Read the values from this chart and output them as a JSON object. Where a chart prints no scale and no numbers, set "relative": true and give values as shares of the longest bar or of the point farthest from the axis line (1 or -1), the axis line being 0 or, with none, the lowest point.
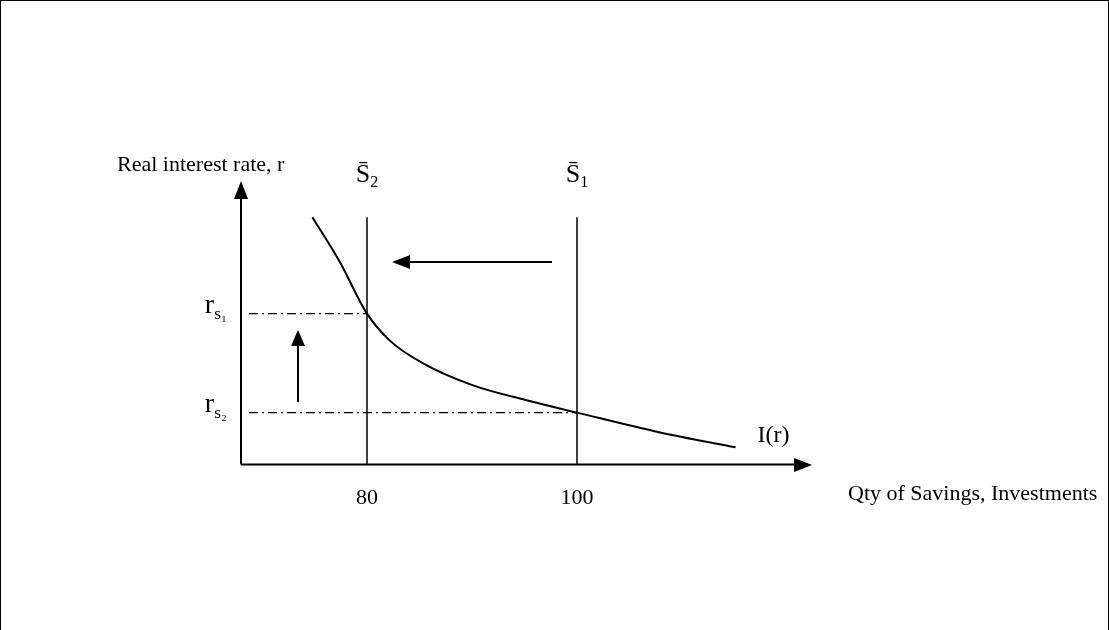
{
  "chart_data": {
    "type": "line",
    "xlabel": "Qty of Savings, Investments",
    "ylabel": "Real interest rate, r",
    "relative": true,
    "xlim": [
      68,
      122
    ],
    "xticks": [
      80,
      100
    ],
    "grid": false,
    "legend": false,
    "marker": "none",
    "line_style": "solid",
    "series": [
      {
        "name": "I(r)",
        "color": "#000000",
        "x": [
          74.8,
          77.4,
          80,
          82.2,
          85.3,
          90.1,
          95.2,
          100,
          107.9,
          115.1
        ],
        "values": [
          1.0,
          0.82,
          0.61,
          0.5,
          0.41,
          0.32,
          0.26,
          0.21,
          0.13,
          0.07
        ]
      }
    ],
    "ref_lines": [
      {
        "axis": "x",
        "value": 80,
        "label": "S̄$_{2}$",
        "color": "#000000",
        "line_style": "solid"
      },
      {
        "axis": "x",
        "value": 100,
        "label": "S̄$_{1}$",
        "color": "#000000",
        "line_style": "solid"
      },
      {
        "axis": "y",
        "value": 0.61,
        "label": "r$_{s₁}$",
        "color": "#000000",
        "line_style": "dashed"
      },
      {
        "axis": "y",
        "value": 0.21,
        "label": "r$_{s₂}$",
        "color": "#000000",
        "line_style": "dashed"
      }
    ]
  }
}
